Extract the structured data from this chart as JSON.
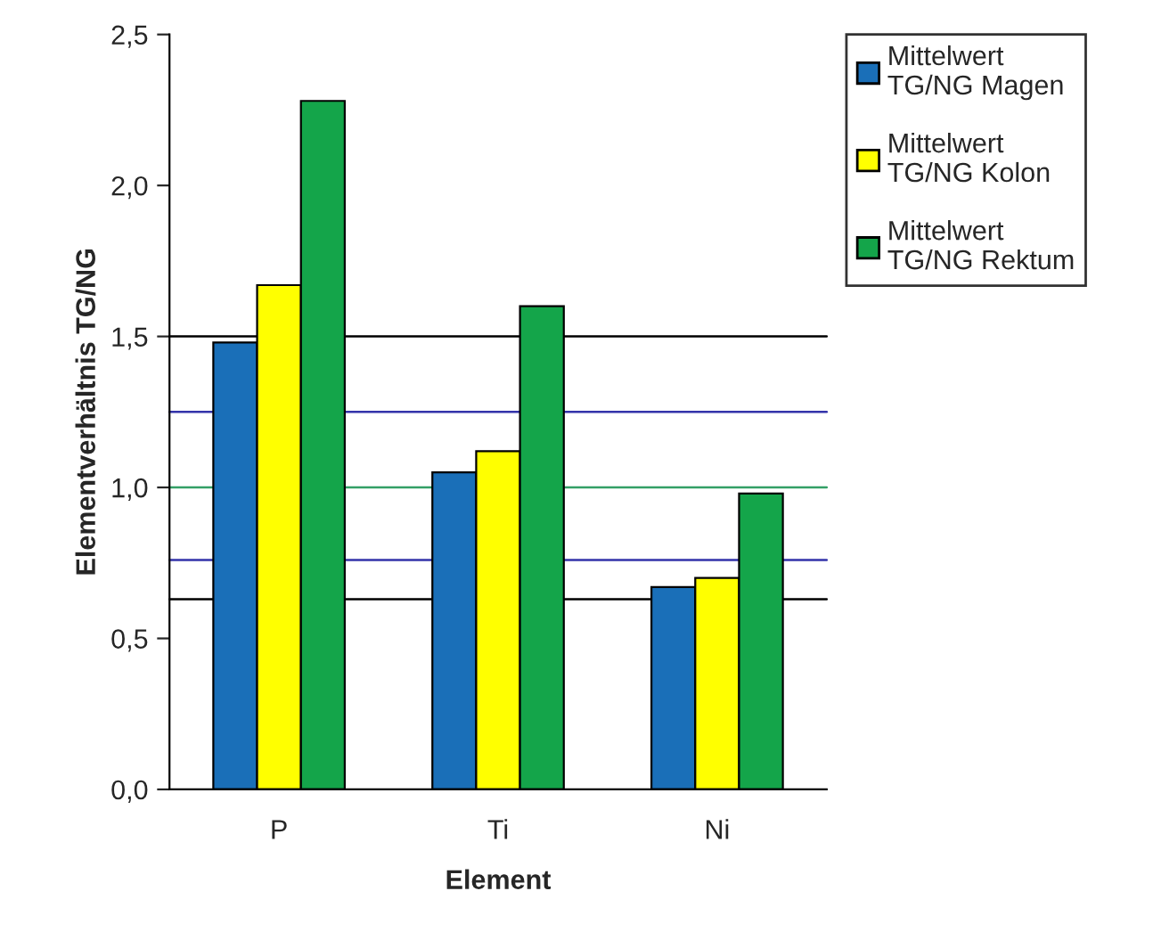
{
  "chart_data": {
    "type": "bar",
    "xlabel": "Element",
    "ylabel": "Elementverhältnis TG/NG",
    "categories": [
      "P",
      "Ti",
      "Ni"
    ],
    "series": [
      {
        "name": "Mittelwert\nTG/NG Magen",
        "color": "#1a6fb8",
        "values": [
          1.48,
          1.05,
          0.67
        ]
      },
      {
        "name": "Mittelwert\nTG/NG Kolon",
        "color": "#ffff00",
        "values": [
          1.67,
          1.12,
          0.7
        ]
      },
      {
        "name": "Mittelwert\nTG/NG Rektum",
        "color": "#14a54a",
        "values": [
          2.28,
          1.6,
          0.98
        ]
      }
    ],
    "ylim": [
      0,
      2.5
    ],
    "yticks": [
      {
        "value": 0,
        "label": "0,0"
      },
      {
        "value": 0.5,
        "label": "0,5"
      },
      {
        "value": 1.0,
        "label": "1,0"
      },
      {
        "value": 1.5,
        "label": "1,5"
      },
      {
        "value": 2.0,
        "label": "2,0"
      },
      {
        "value": 2.5,
        "label": "2,5"
      }
    ],
    "ref_lines": [
      {
        "axis": "y",
        "value": 1.5,
        "color": "#000000"
      },
      {
        "axis": "y",
        "value": 1.25,
        "color": "#3333aa"
      },
      {
        "axis": "y",
        "value": 1.0,
        "color": "#33a066"
      },
      {
        "axis": "y",
        "value": 0.76,
        "color": "#3333aa"
      },
      {
        "axis": "y",
        "value": 0.63,
        "color": "#000000"
      }
    ],
    "legend": "right",
    "grid": false
  }
}
